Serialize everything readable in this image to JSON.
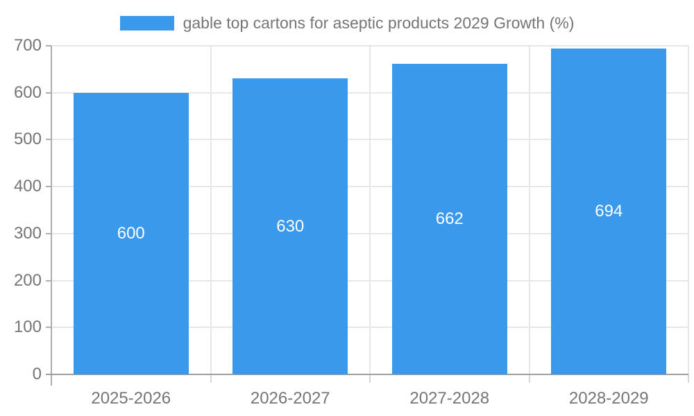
{
  "legend": {
    "label": "gable top cartons for aseptic products 2029 Growth (%)"
  },
  "chart_data": {
    "type": "bar",
    "title": "gable top cartons for aseptic products 2029 Growth (%)",
    "categories": [
      "2025-2026",
      "2026-2027",
      "2027-2028",
      "2028-2029"
    ],
    "values": [
      600,
      630,
      662,
      694
    ],
    "bar_labels": [
      "600",
      "630",
      "662",
      "694"
    ],
    "xlabel": "",
    "ylabel": "",
    "ylim": [
      0,
      700
    ],
    "yticks": [
      0,
      100,
      200,
      300,
      400,
      500,
      600,
      700
    ],
    "grid": "horizontal-and-vertical",
    "legend_position": "top-center",
    "bar_label_position": "center"
  },
  "colors": {
    "bar": "#3B99EC",
    "grid": "#E7E7E7",
    "axis": "#ADADAD",
    "baseline": "#9E9E9E",
    "tick": "#D6D6D6",
    "text": "#757575",
    "bar_label": "#FFFFFF",
    "background": "#FFFFFF"
  }
}
